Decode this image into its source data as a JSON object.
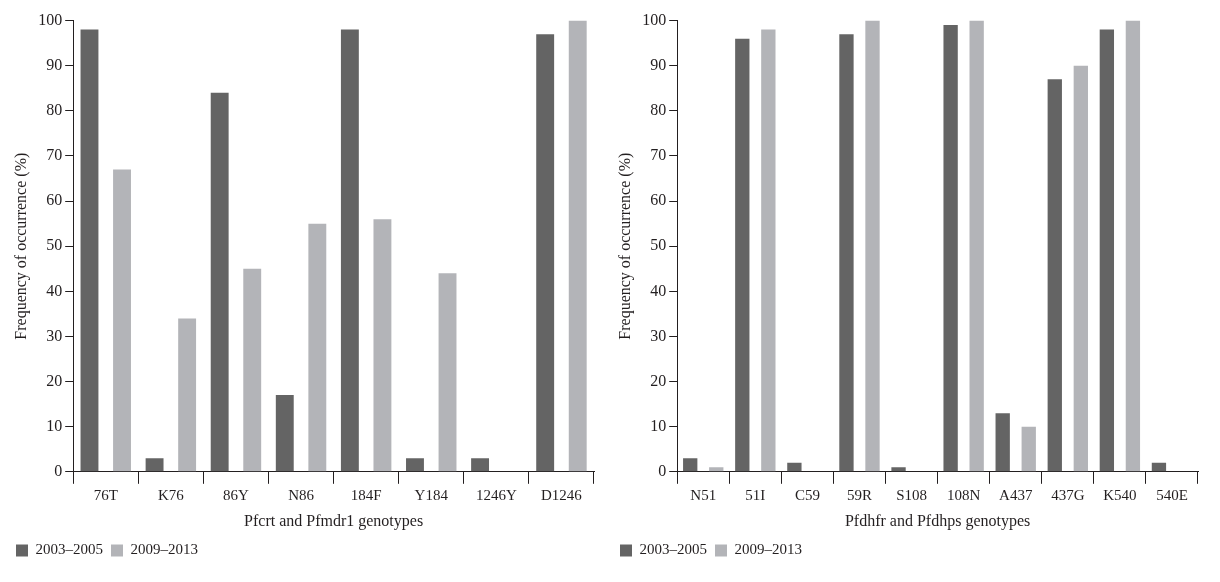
{
  "chart_data": [
    {
      "type": "bar",
      "xlabel": "Pfcrt and Pfmdr1 genotypes",
      "ylabel": "Frequency of occurrence (%)",
      "categories": [
        "76T",
        "K76",
        "86Y",
        "N86",
        "184F",
        "Y184",
        "1246Y",
        "D1246"
      ],
      "series": [
        {
          "name": "2003–2005",
          "color": "#646464",
          "values": [
            98,
            3,
            84,
            17,
            98,
            3,
            3,
            97
          ]
        },
        {
          "name": "2009–2013",
          "color": "#b3b4b8",
          "values": [
            67,
            34,
            45,
            55,
            56,
            44,
            0,
            100
          ]
        }
      ],
      "ylim": [
        0,
        100
      ],
      "yticks": [
        0,
        10,
        20,
        30,
        40,
        50,
        60,
        70,
        80,
        90,
        100
      ],
      "grid": false,
      "legend": "bottom"
    },
    {
      "type": "bar",
      "xlabel": "Pfdhfr and Pfdhps genotypes",
      "ylabel": "Frequency of occurrence (%)",
      "categories": [
        "N51",
        "51I",
        "C59",
        "59R",
        "S108",
        "108N",
        "A437",
        "437G",
        "K540",
        "540E"
      ],
      "series": [
        {
          "name": "2003–2005",
          "color": "#646464",
          "values": [
            3,
            96,
            2,
            97,
            1,
            99,
            13,
            87,
            98,
            2
          ]
        },
        {
          "name": "2009–2013",
          "color": "#b3b4b8",
          "values": [
            1,
            98,
            0,
            100,
            0,
            100,
            10,
            90,
            100,
            0
          ]
        }
      ],
      "ylim": [
        0,
        100
      ],
      "yticks": [
        0,
        10,
        20,
        30,
        40,
        50,
        60,
        70,
        80,
        90,
        100
      ],
      "grid": false,
      "legend": "bottom"
    }
  ]
}
